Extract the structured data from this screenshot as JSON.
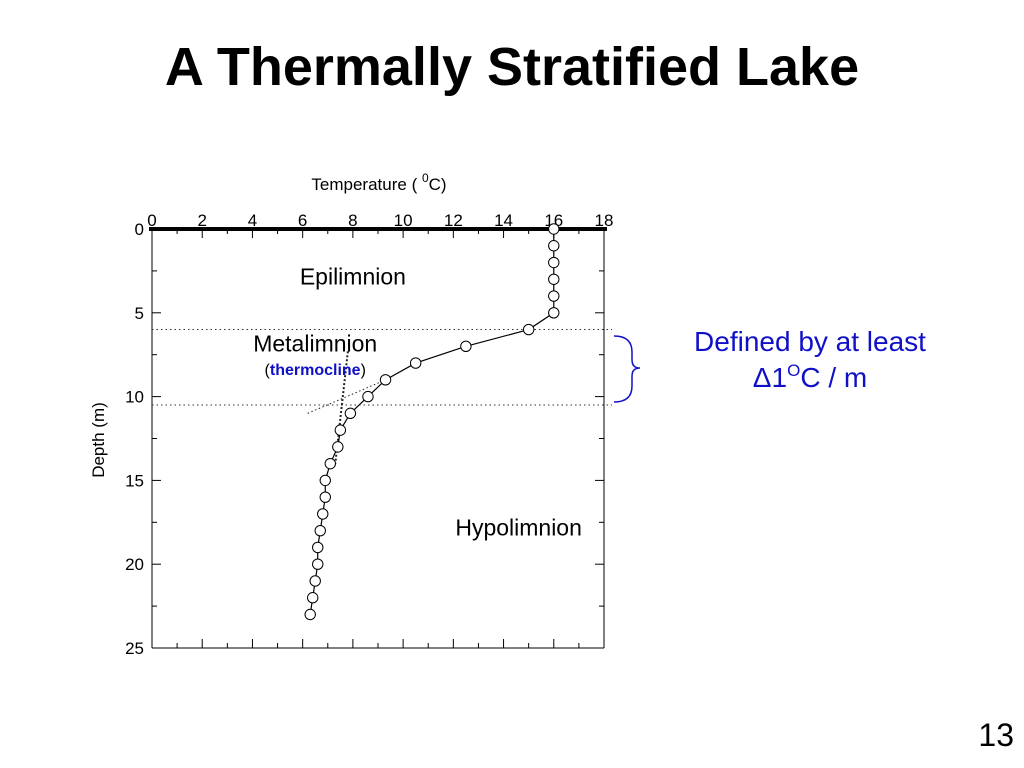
{
  "slide": {
    "title": "A Thermally Stratified Lake",
    "page_number": "13",
    "callout_line1": "Defined by at least",
    "callout_delta": "Δ",
    "callout_one": "1",
    "callout_sup": "O",
    "callout_rest": "C / m"
  },
  "colors": {
    "callout": "#1010c8",
    "thermocline_label": "#1010c8"
  },
  "chart_data": {
    "type": "line",
    "title": "",
    "xlabel": "Temperature ( ",
    "xlabel_sup": "0",
    "xlabel_end": "C)",
    "ylabel": "Depth (m)",
    "x_axis_position": "top",
    "y_axis_inverted": true,
    "xlim": [
      0,
      18
    ],
    "ylim": [
      0,
      25
    ],
    "x_ticks": [
      0,
      2,
      4,
      6,
      8,
      10,
      12,
      14,
      16,
      18
    ],
    "y_ticks": [
      0,
      5,
      10,
      15,
      20,
      25
    ],
    "grid": false,
    "marker": "open-circle",
    "series": [
      {
        "temperature": [
          16,
          16,
          16,
          16,
          16,
          16,
          15,
          12.5,
          10.5,
          9.3,
          8.6,
          7.9,
          7.5,
          7.4,
          7.1,
          6.9,
          6.9,
          6.8,
          6.7,
          6.6,
          6.6,
          6.5,
          6.4,
          6.3
        ],
        "depth": [
          0,
          1,
          2,
          3,
          4,
          5,
          6,
          7,
          8,
          9,
          10,
          11,
          12,
          13,
          14,
          15,
          16,
          17,
          18,
          19,
          20,
          21,
          22,
          23
        ]
      }
    ],
    "thermocline_boundaries": [
      6,
      10.5
    ],
    "trend_lines": [
      {
        "temperature": [
          6.2,
          9.3
        ],
        "depth": [
          11,
          9
        ]
      },
      {
        "temperature": [
          7.8,
          7.3
        ],
        "depth": [
          7.3,
          14
        ]
      }
    ],
    "annotations": [
      {
        "text": "Epilimnion",
        "temperature": 8,
        "depth": 3.3
      },
      {
        "text": "Metalimnion",
        "temperature": 6.5,
        "depth": 7.3
      },
      {
        "text_open": "(",
        "text_bold": "thermocline",
        "text_close": ")",
        "temperature": 6.5,
        "depth": 8.7
      },
      {
        "text": "Hypolimnion",
        "temperature": 14.6,
        "depth": 18.3
      }
    ]
  }
}
